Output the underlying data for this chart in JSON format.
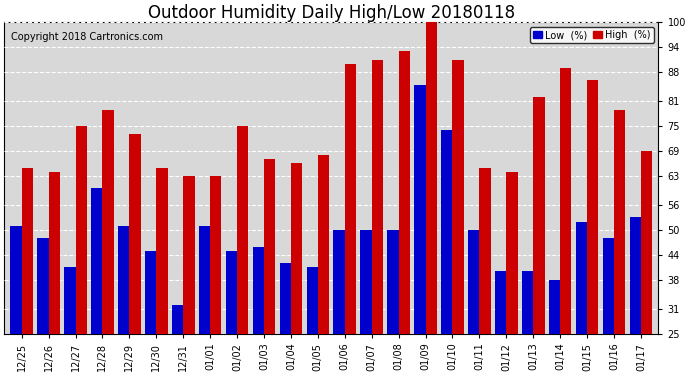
{
  "title": "Outdoor Humidity Daily High/Low 20180118",
  "copyright": "Copyright 2018 Cartronics.com",
  "categories": [
    "12/25",
    "12/26",
    "12/27",
    "12/28",
    "12/29",
    "12/30",
    "12/31",
    "01/01",
    "01/02",
    "01/03",
    "01/04",
    "01/05",
    "01/06",
    "01/07",
    "01/08",
    "01/09",
    "01/10",
    "01/11",
    "01/12",
    "01/13",
    "01/14",
    "01/15",
    "01/16",
    "01/17"
  ],
  "low_values": [
    51,
    48,
    41,
    60,
    51,
    45,
    32,
    51,
    45,
    46,
    42,
    41,
    50,
    50,
    50,
    85,
    74,
    50,
    40,
    40,
    38,
    52,
    48,
    53
  ],
  "high_values": [
    65,
    64,
    75,
    79,
    73,
    65,
    63,
    63,
    75,
    67,
    66,
    68,
    90,
    91,
    93,
    100,
    91,
    65,
    64,
    82,
    89,
    86,
    79,
    69
  ],
  "low_color": "#0000cc",
  "high_color": "#cc0000",
  "bg_color": "#ffffff",
  "plot_bg_color": "#d8d8d8",
  "grid_color": "#ffffff",
  "ylim_min": 25,
  "ylim_max": 100,
  "yticks": [
    25,
    31,
    38,
    44,
    50,
    56,
    63,
    69,
    75,
    81,
    88,
    94,
    100
  ],
  "bar_width": 0.42,
  "legend_low_label": "Low  (%)",
  "legend_high_label": "High  (%)",
  "title_fontsize": 12,
  "copyright_fontsize": 7,
  "tick_fontsize": 7
}
